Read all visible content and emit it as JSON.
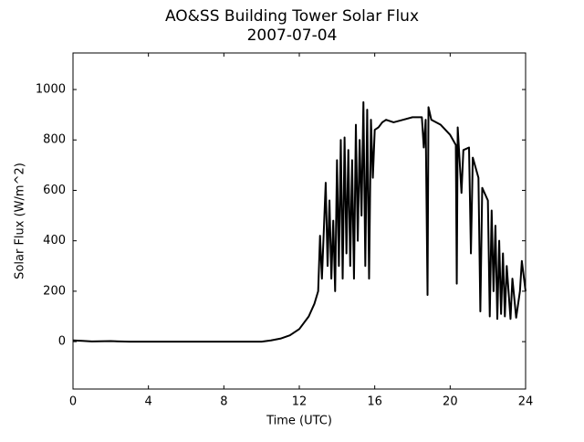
{
  "chart_data": {
    "type": "line",
    "title": "AO&SS Building Tower Solar Flux",
    "subtitle": "2007-07-04",
    "x_label": "Time (UTC)",
    "y_label": "Solar Flux (W/m^2)",
    "color": "#000000",
    "x": [
      0,
      0.5,
      1,
      2,
      3,
      4,
      6,
      8,
      10,
      10.5,
      11,
      11.5,
      12,
      12.5,
      12.8,
      13,
      13.1,
      13.2,
      13.4,
      13.5,
      13.6,
      13.7,
      13.8,
      13.9,
      14,
      14.1,
      14.2,
      14.3,
      14.4,
      14.5,
      14.6,
      14.7,
      14.8,
      14.9,
      15,
      15.1,
      15.2,
      15.3,
      15.4,
      15.5,
      15.6,
      15.7,
      15.8,
      15.9,
      16,
      16.2,
      16.4,
      16.6,
      17,
      17.5,
      18,
      18.5,
      18.6,
      18.7,
      18.8,
      18.85,
      19,
      19.5,
      20,
      20.3,
      20.35,
      20.4,
      20.6,
      20.7,
      21,
      21.1,
      21.2,
      21.5,
      21.6,
      21.7,
      22,
      22.1,
      22.2,
      22.3,
      22.4,
      22.5,
      22.6,
      22.7,
      22.8,
      22.9,
      23,
      23.2,
      23.3,
      23.5,
      23.7,
      23.8,
      24
    ],
    "values": [
      5,
      3,
      1,
      2,
      0,
      0,
      0,
      0,
      0,
      5,
      12,
      25,
      50,
      100,
      150,
      200,
      420,
      250,
      630,
      300,
      560,
      250,
      480,
      200,
      720,
      300,
      800,
      250,
      810,
      350,
      760,
      300,
      720,
      250,
      860,
      400,
      800,
      500,
      950,
      300,
      920,
      250,
      880,
      650,
      840,
      850,
      870,
      880,
      870,
      880,
      890,
      890,
      770,
      880,
      185,
      930,
      880,
      860,
      820,
      780,
      230,
      850,
      590,
      760,
      770,
      350,
      730,
      650,
      120,
      610,
      560,
      100,
      520,
      200,
      460,
      90,
      400,
      110,
      350,
      100,
      300,
      90,
      250,
      95,
      200,
      320,
      200
    ],
    "xlim": [
      0,
      24
    ],
    "xticks": [
      0,
      4,
      8,
      12,
      16,
      20,
      24
    ],
    "ylim": [
      -188,
      1145
    ],
    "yticks": [
      0,
      200,
      400,
      600,
      800,
      1000
    ]
  }
}
